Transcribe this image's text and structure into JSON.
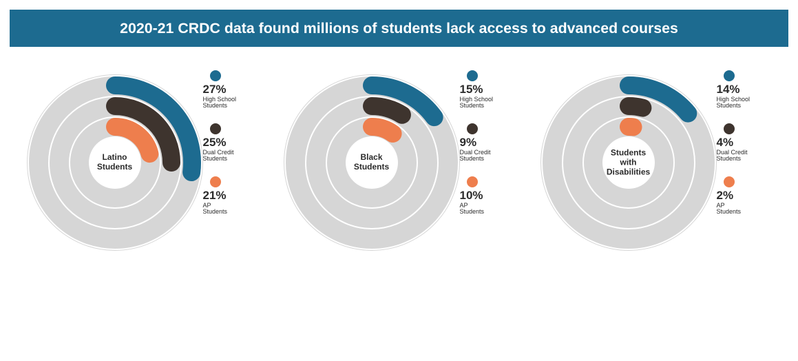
{
  "title_bar": {
    "text": "2020-21 CRDC data found millions of students lack access to advanced courses",
    "background_color": "#1d6b90",
    "text_color": "#ffffff",
    "font_size_pt": 16
  },
  "layout": {
    "chart_diameter": 280,
    "ring_start_angle_deg": -90,
    "sweep_direction": "cw",
    "full_circle_percent": 100
  },
  "style": {
    "track_color": "#d6d6d6",
    "track_divider_color": "#ffffff",
    "center_fill": "#ffffff",
    "ring_linecap": "round",
    "center_label_fontsize": 12,
    "legend_value_fontsize": 17,
    "legend_label_fontsize": 9,
    "legend_dot_diameter": 16
  },
  "rings": [
    {
      "key": "high_school",
      "label": "High School\nStudents",
      "color": "#1d6b90",
      "radius": 112,
      "stroke": 26
    },
    {
      "key": "dual_credit",
      "label": "Dual Credit\nStudents",
      "color": "#3e342e",
      "radius": 82,
      "stroke": 26
    },
    {
      "key": "ap",
      "label": "AP\nStudents",
      "color": "#ee7e4d",
      "radius": 52,
      "stroke": 26
    }
  ],
  "charts": [
    {
      "title": "Latino\nStudents",
      "values": {
        "high_school": 27,
        "dual_credit": 25,
        "ap": 21
      }
    },
    {
      "title": "Black\nStudents",
      "values": {
        "high_school": 15,
        "dual_credit": 9,
        "ap": 10
      }
    },
    {
      "title": "Students\nwith\nDisabilities",
      "values": {
        "high_school": 14,
        "dual_credit": 4,
        "ap": 2
      }
    }
  ]
}
